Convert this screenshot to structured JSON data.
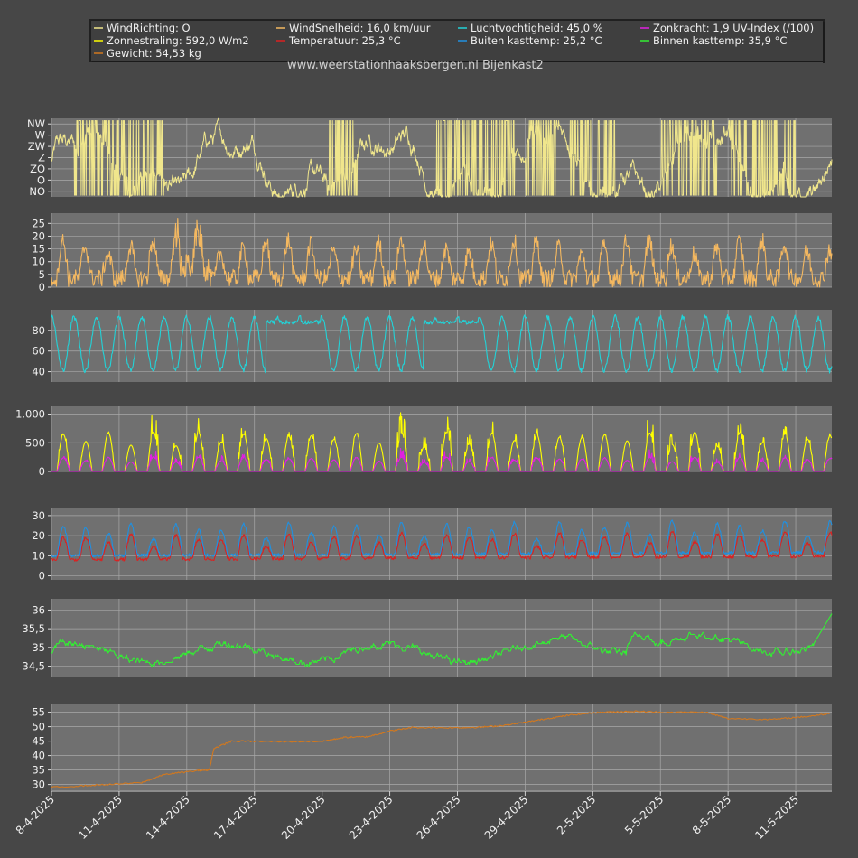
{
  "colors": {
    "background": "#474747",
    "plot_area": "#707070",
    "grid": "#a8a8a8",
    "legend_bg": "#404040",
    "text": "#f0f0f0"
  },
  "watermark": "www.weerstationhaaksbergen.nl Bijenkast2",
  "legend": [
    {
      "label": "WindRichting: O",
      "color": "#f0e68c"
    },
    {
      "label": "WindSnelheid: 16,0 km/uur",
      "color": "#f4b860"
    },
    {
      "label": "Luchtvochtigheid: 45,0 %",
      "color": "#22d3d8"
    },
    {
      "label": "Zonkracht: 1,9 UV-Index (/100)",
      "color": "#e020e0"
    },
    {
      "label": "Zonnestraling: 592,0 W/m2",
      "color": "#ffff00"
    },
    {
      "label": "Temperatuur: 25,3 °C",
      "color": "#dc2020"
    },
    {
      "label": "Buiten kasttemp: 25,2 °C",
      "color": "#2090e0"
    },
    {
      "label": "Binnen kasttemp: 35,9 °C",
      "color": "#33ee33"
    },
    {
      "label": "Gewicht: 54,53 kg",
      "color": "#d2781e"
    }
  ],
  "chart_data": {
    "type": "line",
    "x_labels": [
      "8-4-2025",
      "11-4-2025",
      "14-4-2025",
      "17-4-2025",
      "20-4-2025",
      "23-4-2025",
      "26-4-2025",
      "29-4-2025",
      "2-5-2025",
      "5-5-2025",
      "8-5-2025",
      "11-5-2025"
    ],
    "x_range_days": [
      8,
      42.6
    ],
    "grid": true,
    "panels": [
      {
        "name": "wind-direction",
        "ylim": [
          0,
          7
        ],
        "ticks": [
          {
            "v": 0.5,
            "t": "NO"
          },
          {
            "v": 1.5,
            "t": "O"
          },
          {
            "v": 2.5,
            "t": "ZO"
          },
          {
            "v": 3.5,
            "t": "Z"
          },
          {
            "v": 4.5,
            "t": "ZW"
          },
          {
            "v": 5.5,
            "t": "W"
          },
          {
            "v": 6.5,
            "t": "NW"
          }
        ],
        "series": [
          {
            "name": "WindRichting",
            "kind": "winddir",
            "color": "#f0e68c"
          }
        ]
      },
      {
        "name": "wind-speed",
        "ylim": [
          0,
          29
        ],
        "ticks": [
          {
            "v": 0,
            "t": "0"
          },
          {
            "v": 5,
            "t": "5"
          },
          {
            "v": 10,
            "t": "10"
          },
          {
            "v": 15,
            "t": "15"
          },
          {
            "v": 20,
            "t": "20"
          },
          {
            "v": 25,
            "t": "25"
          }
        ],
        "series": [
          {
            "name": "WindSnelheid",
            "kind": "wind",
            "color": "#f4b860"
          }
        ]
      },
      {
        "name": "humidity",
        "ylim": [
          30,
          100
        ],
        "ticks": [
          {
            "v": 40,
            "t": "40"
          },
          {
            "v": 60,
            "t": "60"
          },
          {
            "v": 80,
            "t": "80"
          }
        ],
        "series": [
          {
            "name": "Luchtvochtigheid",
            "kind": "humidity",
            "color": "#22d3d8",
            "min": 40,
            "max": 95
          }
        ]
      },
      {
        "name": "radiation",
        "ylim": [
          0,
          1150
        ],
        "ticks": [
          {
            "v": 0,
            "t": "0"
          },
          {
            "v": 500,
            "t": "500"
          },
          {
            "v": 1000,
            "t": "1.000"
          }
        ],
        "series": [
          {
            "name": "Zonnestraling",
            "kind": "solar",
            "color": "#ffff00",
            "peak": 950
          },
          {
            "name": "Zonkracht",
            "kind": "uv",
            "color": "#e020e0",
            "peak": 450
          }
        ]
      },
      {
        "name": "temperature",
        "ylim": [
          -2,
          34
        ],
        "ticks": [
          {
            "v": 0,
            "t": "0"
          },
          {
            "v": 10,
            "t": "10"
          },
          {
            "v": 20,
            "t": "20"
          },
          {
            "v": 30,
            "t": "30"
          }
        ],
        "series": [
          {
            "name": "Temperatuur",
            "kind": "temp",
            "color": "#dc2020",
            "base": 12,
            "amp": 7
          },
          {
            "name": "Buiten kasttemp",
            "kind": "temp",
            "color": "#2090e0",
            "base": 14,
            "amp": 9
          }
        ]
      },
      {
        "name": "inner-temp",
        "ylim": [
          34.2,
          36.3
        ],
        "ticks": [
          {
            "v": 34.5,
            "t": "34,5"
          },
          {
            "v": 35,
            "t": "35"
          },
          {
            "v": 35.5,
            "t": "35,5"
          },
          {
            "v": 36,
            "t": "36"
          }
        ],
        "series": [
          {
            "name": "Binnen kasttemp",
            "kind": "inner",
            "color": "#33ee33"
          }
        ]
      },
      {
        "name": "weight",
        "ylim": [
          28,
          58
        ],
        "ticks": [
          {
            "v": 30,
            "t": "30"
          },
          {
            "v": 35,
            "t": "35"
          },
          {
            "v": 40,
            "t": "40"
          },
          {
            "v": 45,
            "t": "45"
          },
          {
            "v": 50,
            "t": "50"
          },
          {
            "v": 55,
            "t": "55"
          }
        ],
        "series": [
          {
            "name": "Gewicht",
            "kind": "weight",
            "color": "#d2781e",
            "points": [
              [
                8,
                29.0
              ],
              [
                10,
                29.8
              ],
              [
                12,
                30.6
              ],
              [
                13,
                33.5
              ],
              [
                14.5,
                34.8
              ],
              [
                15,
                35.0
              ],
              [
                15.2,
                42.5
              ],
              [
                16,
                45.0
              ],
              [
                18,
                44.8
              ],
              [
                20,
                44.9
              ],
              [
                21,
                46.3
              ],
              [
                22,
                46.5
              ],
              [
                23,
                48.5
              ],
              [
                24,
                49.7
              ],
              [
                26,
                49.6
              ],
              [
                27,
                49.8
              ],
              [
                28,
                50.4
              ],
              [
                29,
                51.5
              ],
              [
                30,
                52.8
              ],
              [
                31,
                54.0
              ],
              [
                32,
                54.8
              ],
              [
                33,
                55.2
              ],
              [
                34,
                55.3
              ],
              [
                35,
                55.0
              ],
              [
                37,
                55.0
              ],
              [
                38,
                52.8
              ],
              [
                40,
                52.5
              ],
              [
                41.5,
                53.5
              ],
              [
                42.5,
                54.53
              ]
            ]
          }
        ]
      }
    ]
  }
}
